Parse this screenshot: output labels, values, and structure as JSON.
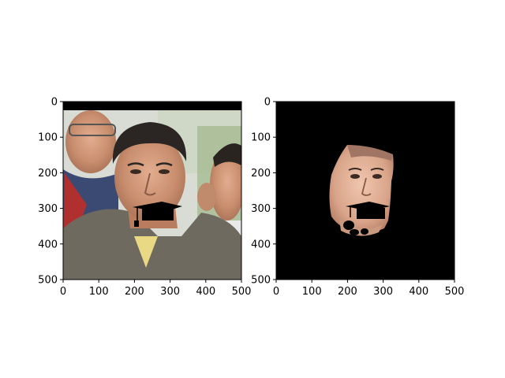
{
  "chart_data": [
    {
      "type": "image",
      "title": "",
      "xlabel": "",
      "ylabel": "",
      "xlim": [
        0,
        500
      ],
      "ylim": [
        500,
        0
      ],
      "xticks": [
        0,
        100,
        200,
        300,
        400,
        500
      ],
      "yticks": [
        0,
        100,
        200,
        300,
        400,
        500
      ],
      "content": "photo of man with graduation-cap shaped black mask over mouth",
      "colors": {
        "background": "#000000",
        "frame": "#000000"
      }
    },
    {
      "type": "image",
      "title": "",
      "xlabel": "",
      "ylabel": "",
      "xlim": [
        0,
        500
      ],
      "ylim": [
        500,
        0
      ],
      "xticks": [
        0,
        100,
        200,
        300,
        400,
        500
      ],
      "yticks": [
        0,
        100,
        200,
        300,
        400,
        500
      ],
      "content": "segmented face region on black background with graduation-cap shaped mask",
      "colors": {
        "background": "#000000",
        "frame": "#000000"
      }
    }
  ]
}
